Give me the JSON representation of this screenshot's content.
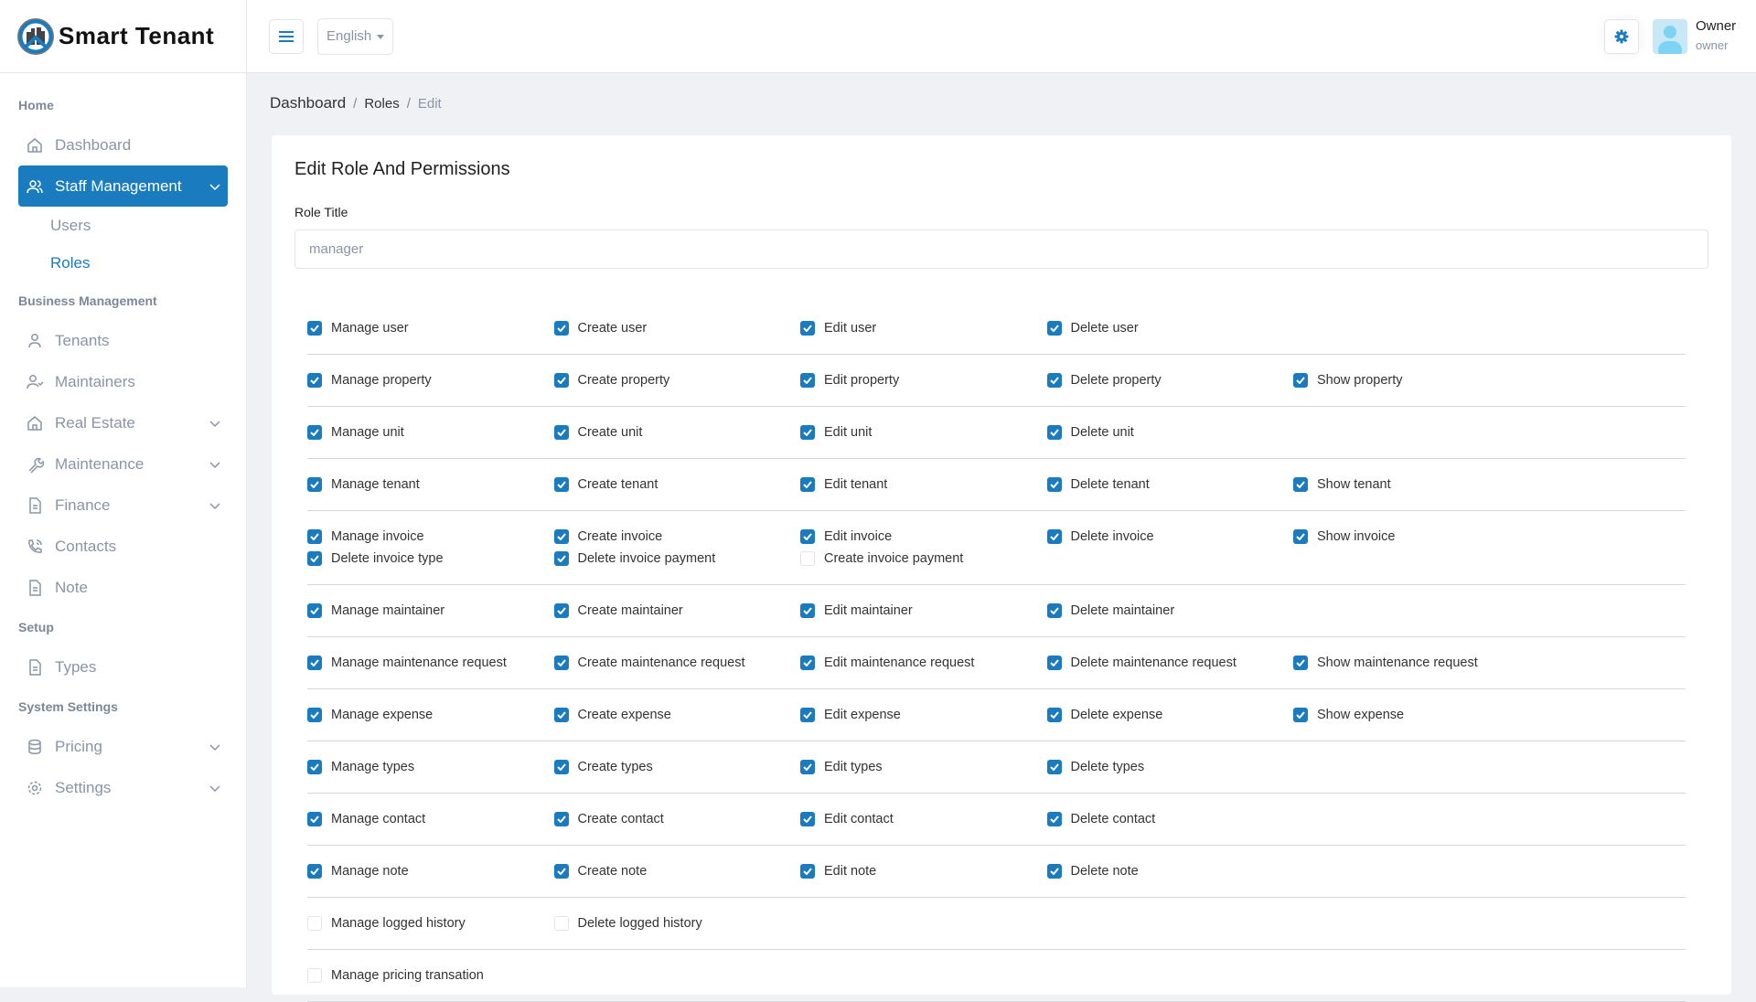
{
  "brand": {
    "name": "Smart Tenant",
    "accent": "#1b7bbf"
  },
  "header": {
    "language": "English",
    "user_name": "Owner",
    "user_role": "owner"
  },
  "sidebar": {
    "sections": [
      {
        "title": "Home",
        "items": [
          {
            "label": "Dashboard",
            "icon": "home-icon"
          },
          {
            "label": "Staff Management",
            "icon": "users-icon",
            "active": true,
            "expandable": true,
            "children": [
              {
                "label": "Users"
              },
              {
                "label": "Roles",
                "active": true
              }
            ]
          }
        ]
      },
      {
        "title": "Business Management",
        "items": [
          {
            "label": "Tenants",
            "icon": "user-icon"
          },
          {
            "label": "Maintainers",
            "icon": "user-check-icon"
          },
          {
            "label": "Real Estate",
            "icon": "home-icon",
            "expandable": true
          },
          {
            "label": "Maintenance",
            "icon": "wrench-icon",
            "expandable": true
          },
          {
            "label": "Finance",
            "icon": "file-icon",
            "expandable": true
          },
          {
            "label": "Contacts",
            "icon": "phone-icon"
          },
          {
            "label": "Note",
            "icon": "file-icon"
          }
        ]
      },
      {
        "title": "Setup",
        "items": [
          {
            "label": "Types",
            "icon": "file-icon"
          }
        ]
      },
      {
        "title": "System Settings",
        "items": [
          {
            "label": "Pricing",
            "icon": "database-icon",
            "expandable": true
          },
          {
            "label": "Settings",
            "icon": "gear-icon",
            "expandable": true
          }
        ]
      }
    ]
  },
  "breadcrumb": [
    "Dashboard",
    "Roles",
    "Edit"
  ],
  "form": {
    "title": "Edit Role And Permissions",
    "role_title_label": "Role Title",
    "role_title_value": "manager"
  },
  "permissions": [
    [
      [
        "Manage user",
        true
      ],
      [
        "Create user",
        true
      ],
      [
        "Edit user",
        true
      ],
      [
        "Delete user",
        true
      ]
    ],
    [
      [
        "Manage property",
        true
      ],
      [
        "Create property",
        true
      ],
      [
        "Edit property",
        true
      ],
      [
        "Delete property",
        true
      ],
      [
        "Show property",
        true
      ]
    ],
    [
      [
        "Manage unit",
        true
      ],
      [
        "Create unit",
        true
      ],
      [
        "Edit unit",
        true
      ],
      [
        "Delete unit",
        true
      ]
    ],
    [
      [
        "Manage tenant",
        true
      ],
      [
        "Create tenant",
        true
      ],
      [
        "Edit tenant",
        true
      ],
      [
        "Delete tenant",
        true
      ],
      [
        "Show tenant",
        true
      ]
    ],
    [
      [
        "Manage invoice",
        true
      ],
      [
        "Create invoice",
        true
      ],
      [
        "Edit invoice",
        true
      ],
      [
        "Delete invoice",
        true
      ],
      [
        "Show invoice",
        true
      ],
      [
        "Delete invoice type",
        true
      ],
      [
        "Delete invoice payment",
        true
      ],
      [
        "Create invoice payment",
        false
      ]
    ],
    [
      [
        "Manage maintainer",
        true
      ],
      [
        "Create maintainer",
        true
      ],
      [
        "Edit maintainer",
        true
      ],
      [
        "Delete maintainer",
        true
      ]
    ],
    [
      [
        "Manage maintenance request",
        true
      ],
      [
        "Create maintenance request",
        true
      ],
      [
        "Edit maintenance request",
        true
      ],
      [
        "Delete maintenance request",
        true
      ],
      [
        "Show maintenance request",
        true
      ]
    ],
    [
      [
        "Manage expense",
        true
      ],
      [
        "Create expense",
        true
      ],
      [
        "Edit expense",
        true
      ],
      [
        "Delete expense",
        true
      ],
      [
        "Show expense",
        true
      ]
    ],
    [
      [
        "Manage types",
        true
      ],
      [
        "Create types",
        true
      ],
      [
        "Edit types",
        true
      ],
      [
        "Delete types",
        true
      ]
    ],
    [
      [
        "Manage contact",
        true
      ],
      [
        "Create contact",
        true
      ],
      [
        "Edit contact",
        true
      ],
      [
        "Delete contact",
        true
      ]
    ],
    [
      [
        "Manage note",
        true
      ],
      [
        "Create note",
        true
      ],
      [
        "Edit note",
        true
      ],
      [
        "Delete note",
        true
      ]
    ],
    [
      [
        "Manage logged history",
        false
      ],
      [
        "Delete logged history",
        false
      ]
    ],
    [
      [
        "Manage pricing transation",
        false
      ]
    ]
  ]
}
